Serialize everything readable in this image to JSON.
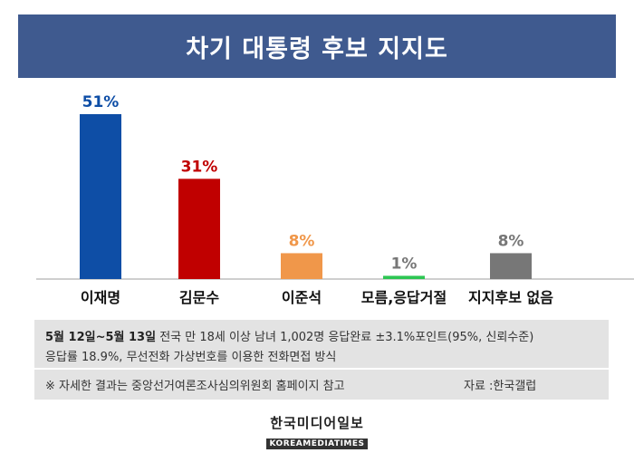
{
  "header": {
    "title": "차기 대통령 후보 지지도"
  },
  "chart_data": {
    "type": "bar",
    "categories": [
      "이재명",
      "김문수",
      "이준석",
      "모름,응답거절",
      "지지후보 없음"
    ],
    "values": [
      51,
      31,
      8,
      1,
      8
    ],
    "value_labels": [
      "51%",
      "31%",
      "8%",
      "1%",
      "8%"
    ],
    "colors": [
      "#0e4ea6",
      "#c00000",
      "#f0974a",
      "#2dc653",
      "#777777"
    ],
    "label_colors": [
      "#0e4ea6",
      "#c00000",
      "#f0974a",
      "#777777",
      "#777777"
    ],
    "title": "차기 대통령 후보 지지도",
    "xlabel": "",
    "ylabel": "",
    "ylim": [
      0,
      55
    ],
    "grid": false
  },
  "notes": {
    "date_range": "5월 12일~5월 13일",
    "line1": " 전국 만 18세 이상 남녀 1,002명 응답완료 ±3.1%포인트(95%, 신뢰수준)",
    "line2": "응답률 18.9%, 무선전화 가상번호를 이용한 전화면접 방식",
    "reference": "※ 자세한 결과는 중앙선거여론조사심의위원회 홈페이지 참고",
    "source": "자료 :한국갤럽"
  },
  "logo": {
    "korean": "한국미디어일보",
    "english": "KOREAMEDIATIMES"
  }
}
